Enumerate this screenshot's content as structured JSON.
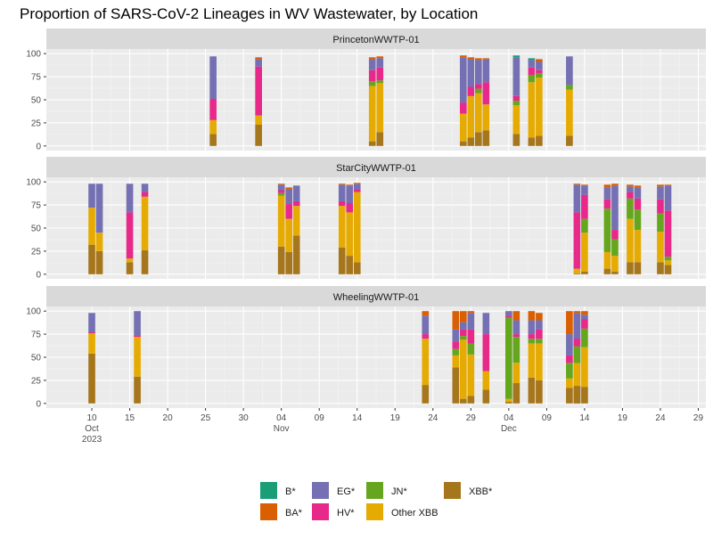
{
  "chart_data": {
    "type": "bar",
    "stacked": true,
    "title": "Proportion of SARS-CoV-2 Lineages in WV Wastewater, by Location",
    "xlabel": "",
    "ylabel": "",
    "ylim": [
      0,
      100
    ],
    "yticks": [
      0,
      25,
      50,
      75,
      100
    ],
    "x_range": [
      "2023-10-04",
      "2023-12-30"
    ],
    "x_ticks": [
      {
        "date": "2023-10-10",
        "label": "10",
        "month": "Oct",
        "year": "2023"
      },
      {
        "date": "2023-10-15",
        "label": "15"
      },
      {
        "date": "2023-10-20",
        "label": "20"
      },
      {
        "date": "2023-10-25",
        "label": "25"
      },
      {
        "date": "2023-10-30",
        "label": "30"
      },
      {
        "date": "2023-11-04",
        "label": "04",
        "month": "Nov"
      },
      {
        "date": "2023-11-09",
        "label": "09"
      },
      {
        "date": "2023-11-14",
        "label": "14"
      },
      {
        "date": "2023-11-19",
        "label": "19"
      },
      {
        "date": "2023-11-24",
        "label": "24"
      },
      {
        "date": "2023-11-29",
        "label": "29"
      },
      {
        "date": "2023-12-04",
        "label": "04",
        "month": "Dec"
      },
      {
        "date": "2023-12-09",
        "label": "09"
      },
      {
        "date": "2023-12-14",
        "label": "14"
      },
      {
        "date": "2023-12-19",
        "label": "19"
      },
      {
        "date": "2023-12-24",
        "label": "24"
      },
      {
        "date": "2023-12-29",
        "label": "29"
      }
    ],
    "grid": true,
    "legend_position": "bottom",
    "series_order": [
      "XBB*",
      "Other XBB",
      "JN*",
      "HV*",
      "EG*",
      "BA*",
      "B*"
    ],
    "legend": [
      {
        "name": "B*",
        "color": "#1B9E77"
      },
      {
        "name": "BA*",
        "color": "#D95F02"
      },
      {
        "name": "EG*",
        "color": "#7570B3"
      },
      {
        "name": "HV*",
        "color": "#E7298A"
      },
      {
        "name": "JN*",
        "color": "#66A61E"
      },
      {
        "name": "Other XBB",
        "color": "#E6AB02"
      },
      {
        "name": "XBB*",
        "color": "#A6761D"
      }
    ],
    "panels": [
      {
        "name": "PrincetonWWTP-01",
        "bars": [
          {
            "date": "2023-10-26",
            "XBB*": 13,
            "Other XBB": 15,
            "HV*": 23,
            "EG*": 46
          },
          {
            "date": "2023-11-01",
            "XBB*": 23,
            "Other XBB": 10,
            "HV*": 53,
            "EG*": 8,
            "BA*": 2
          },
          {
            "date": "2023-11-16",
            "XBB*": 5,
            "Other XBB": 60,
            "JN*": 5,
            "HV*": 12,
            "EG*": 12,
            "BA*": 2
          },
          {
            "date": "2023-11-17",
            "XBB*": 15,
            "Other XBB": 53,
            "JN*": 3,
            "HV*": 14,
            "EG*": 10,
            "BA*": 2
          },
          {
            "date": "2023-11-28",
            "XBB*": 5,
            "Other XBB": 30,
            "HV*": 12,
            "EG*": 49,
            "BA*": 2
          },
          {
            "date": "2023-11-29",
            "XBB*": 9,
            "Other XBB": 45,
            "HV*": 10,
            "EG*": 30,
            "BA*": 2
          },
          {
            "date": "2023-11-30",
            "XBB*": 15,
            "Other XBB": 42,
            "JN*": 5,
            "HV*": 5,
            "EG*": 26,
            "BA*": 2
          },
          {
            "date": "2023-12-01",
            "XBB*": 17,
            "Other XBB": 28,
            "HV*": 24,
            "EG*": 25,
            "BA*": 1
          },
          {
            "date": "2023-12-05",
            "XBB*": 13,
            "Other XBB": 31,
            "JN*": 5,
            "HV*": 5,
            "EG*": 42,
            "B*": 2
          },
          {
            "date": "2023-12-07",
            "XBB*": 9,
            "Other XBB": 60,
            "JN*": 8,
            "HV*": 8,
            "EG*": 8,
            "B*": 2
          },
          {
            "date": "2023-12-08",
            "XBB*": 11,
            "Other XBB": 63,
            "JN*": 5,
            "HV*": 3,
            "EG*": 9,
            "BA*": 3
          },
          {
            "date": "2023-12-12",
            "XBB*": 11,
            "Other XBB": 50,
            "JN*": 5,
            "EG*": 31
          }
        ]
      },
      {
        "name": "StarCityWWTP-01",
        "bars": [
          {
            "date": "2023-10-10",
            "XBB*": 32,
            "Other XBB": 40,
            "EG*": 26
          },
          {
            "date": "2023-10-11",
            "XBB*": 25,
            "Other XBB": 20,
            "EG*": 53
          },
          {
            "date": "2023-10-15",
            "XBB*": 13,
            "Other XBB": 4,
            "HV*": 50,
            "EG*": 31
          },
          {
            "date": "2023-10-17",
            "XBB*": 26,
            "Other XBB": 58,
            "HV*": 5,
            "EG*": 9
          },
          {
            "date": "2023-11-04",
            "XBB*": 30,
            "Other XBB": 55,
            "JN*": 3,
            "HV*": 3,
            "EG*": 6,
            "BA*": 1
          },
          {
            "date": "2023-11-05",
            "XBB*": 24,
            "Other XBB": 36,
            "HV*": 16,
            "EG*": 16,
            "BA*": 2
          },
          {
            "date": "2023-11-06",
            "XBB*": 42,
            "Other XBB": 32,
            "HV*": 5,
            "EG*": 17
          },
          {
            "date": "2023-11-12",
            "XBB*": 29,
            "Other XBB": 45,
            "HV*": 5,
            "EG*": 18,
            "BA*": 1
          },
          {
            "date": "2023-11-13",
            "XBB*": 20,
            "Other XBB": 47,
            "HV*": 10,
            "EG*": 19,
            "BA*": 1
          },
          {
            "date": "2023-11-14",
            "XBB*": 13,
            "Other XBB": 76,
            "HV*": 3,
            "EG*": 6,
            "BA*": 1
          },
          {
            "date": "2023-12-13",
            "XBB*": 1,
            "Other XBB": 5,
            "HV*": 61,
            "EG*": 30,
            "BA*": 1
          },
          {
            "date": "2023-12-14",
            "XBB*": 3,
            "Other XBB": 42,
            "JN*": 15,
            "HV*": 26,
            "EG*": 10,
            "BA*": 1
          },
          {
            "date": "2023-12-17",
            "XBB*": 6,
            "Other XBB": 18,
            "JN*": 47,
            "HV*": 10,
            "EG*": 13,
            "BA*": 3
          },
          {
            "date": "2023-12-18",
            "XBB*": 3,
            "Other XBB": 17,
            "JN*": 18,
            "HV*": 10,
            "EG*": 48,
            "BA*": 2
          },
          {
            "date": "2023-12-20",
            "XBB*": 13,
            "Other XBB": 47,
            "JN*": 22,
            "HV*": 7,
            "EG*": 6,
            "BA*": 2
          },
          {
            "date": "2023-12-21",
            "XBB*": 13,
            "Other XBB": 35,
            "JN*": 22,
            "HV*": 12,
            "EG*": 12,
            "BA*": 2
          },
          {
            "date": "2023-12-24",
            "XBB*": 13,
            "Other XBB": 33,
            "JN*": 20,
            "HV*": 15,
            "EG*": 14,
            "BA*": 2
          },
          {
            "date": "2023-12-25",
            "XBB*": 10,
            "Other XBB": 5,
            "JN*": 4,
            "HV*": 50,
            "EG*": 27,
            "BA*": 1
          }
        ]
      },
      {
        "name": "WheelingWWTP-01",
        "bars": [
          {
            "date": "2023-10-10",
            "XBB*": 54,
            "Other XBB": 22,
            "HV*": 1,
            "EG*": 21
          },
          {
            "date": "2023-10-16",
            "XBB*": 29,
            "Other XBB": 43,
            "HV*": 2,
            "EG*": 26
          },
          {
            "date": "2023-11-23",
            "XBB*": 20,
            "Other XBB": 50,
            "HV*": 5,
            "EG*": 20,
            "BA*": 5
          },
          {
            "date": "2023-11-27",
            "XBB*": 39,
            "Other XBB": 13,
            "JN*": 7,
            "HV*": 8,
            "EG*": 13,
            "BA*": 20
          },
          {
            "date": "2023-11-28",
            "XBB*": 5,
            "Other XBB": 64,
            "JN*": 4,
            "HV*": 7,
            "EG*": 8,
            "BA*": 12
          },
          {
            "date": "2023-11-29",
            "XBB*": 8,
            "Other XBB": 45,
            "JN*": 12,
            "HV*": 15,
            "EG*": 18,
            "BA*": 2
          },
          {
            "date": "2023-12-01",
            "XBB*": 15,
            "Other XBB": 20,
            "HV*": 40,
            "EG*": 23
          },
          {
            "date": "2023-12-04",
            "XBB*": 2,
            "Other XBB": 3,
            "JN*": 88,
            "HV*": 2,
            "EG*": 5
          },
          {
            "date": "2023-12-05",
            "XBB*": 22,
            "Other XBB": 22,
            "JN*": 28,
            "HV*": 3,
            "EG*": 15,
            "BA*": 10
          },
          {
            "date": "2023-12-07",
            "XBB*": 28,
            "Other XBB": 37,
            "JN*": 5,
            "HV*": 5,
            "EG*": 15,
            "BA*": 10
          },
          {
            "date": "2023-12-08",
            "XBB*": 25,
            "Other XBB": 40,
            "JN*": 5,
            "HV*": 10,
            "EG*": 10,
            "BA*": 8
          },
          {
            "date": "2023-12-12",
            "XBB*": 17,
            "Other XBB": 10,
            "JN*": 17,
            "HV*": 8,
            "EG*": 23,
            "BA*": 25
          },
          {
            "date": "2023-12-13",
            "XBB*": 18,
            "Other XBB": 25,
            "JN*": 18,
            "HV*": 12,
            "EG*": 20,
            "BA*": 5
          },
          {
            "date": "2023-12-13",
            "XBB*": 19,
            "Other XBB": 25,
            "JN*": 18,
            "HV*": 8,
            "EG*": 28,
            "BA*": 2
          },
          {
            "date": "2023-12-14",
            "XBB*": 18,
            "Other XBB": 43,
            "JN*": 20,
            "HV*": 10,
            "EG*": 5,
            "BA*": 4
          }
        ]
      }
    ]
  }
}
